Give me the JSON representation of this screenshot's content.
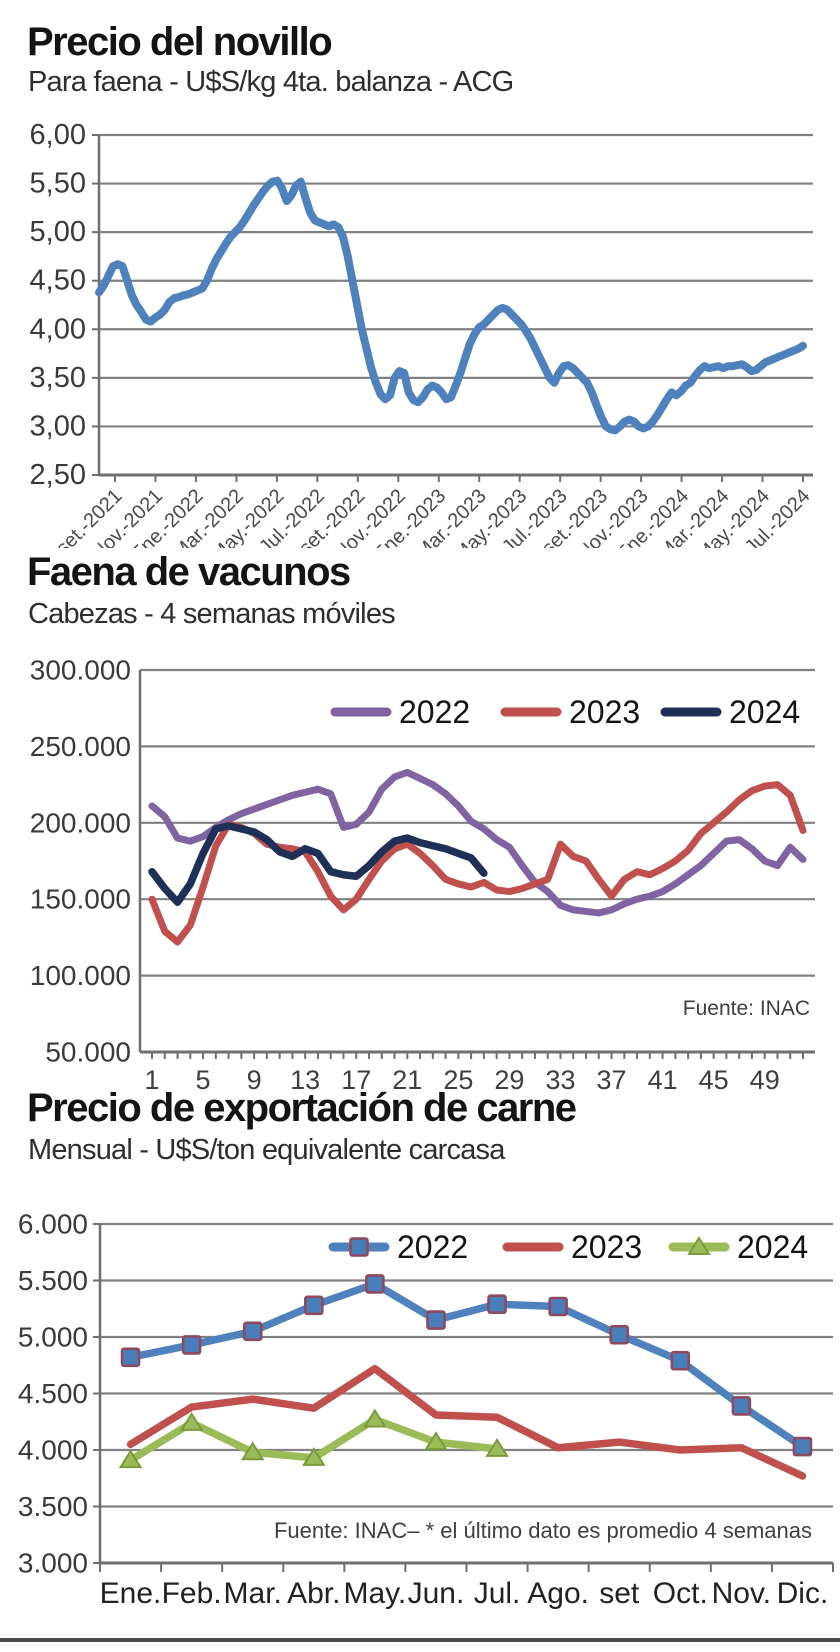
{
  "chart_data": [
    {
      "id": "precio-novillo",
      "type": "line",
      "title": "Precio del novillo",
      "subtitle": "Para faena - U$S/kg 4ta. balanza - ACG",
      "ylim": [
        2.5,
        6.0
      ],
      "yticks": [
        "6,00",
        "5,50",
        "5,00",
        "4,50",
        "4,00",
        "3,50",
        "3,00",
        "2,50"
      ],
      "xticks": [
        "set.-2021",
        "Nov.-2021",
        "Ene.-2022",
        "Mar.-2022",
        "May.-2022",
        "Jul.-2022",
        "set.-2022",
        "Nov.-2022",
        "Ene.-2023",
        "Mar.-2023",
        "May.-2023",
        "Jul.-2023",
        "set.-2023",
        "Nov.-2023",
        "Ene.-2024",
        "Mar.-2024",
        "May.-2024",
        "Jul.-2024"
      ],
      "grid": true,
      "legend_position": "none",
      "series": [
        {
          "name": "Precio del novillo",
          "color": "#4f81bd",
          "values": [
            4.38,
            4.45,
            4.55,
            4.65,
            4.67,
            4.65,
            4.5,
            4.35,
            4.25,
            4.18,
            4.1,
            4.08,
            4.12,
            4.15,
            4.2,
            4.28,
            4.32,
            4.33,
            4.35,
            4.36,
            4.38,
            4.4,
            4.42,
            4.5,
            4.62,
            4.72,
            4.8,
            4.88,
            4.95,
            5.0,
            5.05,
            5.12,
            5.2,
            5.28,
            5.35,
            5.42,
            5.48,
            5.52,
            5.53,
            5.45,
            5.32,
            5.38,
            5.48,
            5.52,
            5.35,
            5.2,
            5.12,
            5.1,
            5.08,
            5.06,
            5.08,
            5.05,
            4.95,
            4.75,
            4.5,
            4.25,
            4.0,
            3.8,
            3.6,
            3.45,
            3.33,
            3.28,
            3.32,
            3.5,
            3.57,
            3.55,
            3.35,
            3.27,
            3.25,
            3.3,
            3.38,
            3.42,
            3.4,
            3.35,
            3.28,
            3.3,
            3.42,
            3.55,
            3.7,
            3.85,
            3.95,
            4.02,
            4.05,
            4.1,
            4.15,
            4.2,
            4.22,
            4.2,
            4.15,
            4.1,
            4.05,
            3.98,
            3.9,
            3.8,
            3.7,
            3.6,
            3.5,
            3.45,
            3.55,
            3.62,
            3.63,
            3.6,
            3.55,
            3.5,
            3.45,
            3.35,
            3.22,
            3.1,
            3.0,
            2.97,
            2.96,
            3.0,
            3.05,
            3.07,
            3.05,
            3.0,
            2.98,
            3.0,
            3.05,
            3.12,
            3.2,
            3.28,
            3.35,
            3.32,
            3.36,
            3.42,
            3.45,
            3.52,
            3.58,
            3.62,
            3.6,
            3.61,
            3.62,
            3.6,
            3.62,
            3.62,
            3.63,
            3.64,
            3.61,
            3.57,
            3.58,
            3.62,
            3.66,
            3.68,
            3.7,
            3.72,
            3.74,
            3.76,
            3.78,
            3.8,
            3.83
          ]
        }
      ]
    },
    {
      "id": "faena-vacunos",
      "type": "line",
      "title": "Faena de vacunos",
      "subtitle": "Cabezas - 4 semanas móviles",
      "ylim": [
        50000,
        300000
      ],
      "yticks": [
        "300.000",
        "250.000",
        "200.000",
        "150.000",
        "100.000",
        "50.000"
      ],
      "xticks": [
        "1",
        "5",
        "9",
        "13",
        "17",
        "21",
        "25",
        "29",
        "33",
        "37",
        "41",
        "45",
        "49"
      ],
      "x_weeks": [
        1,
        52
      ],
      "grid": true,
      "legend_position": "top-center",
      "source": "Fuente: INAC",
      "series": [
        {
          "name": "2022",
          "color": "#8064a2",
          "values": [
            211000,
            204000,
            190000,
            188000,
            191000,
            197000,
            202000,
            206000,
            209000,
            212000,
            215000,
            218000,
            220000,
            222000,
            219000,
            197000,
            199000,
            207000,
            222000,
            230000,
            233000,
            229000,
            225000,
            219000,
            211000,
            201000,
            196000,
            189000,
            184000,
            172000,
            161000,
            155000,
            146000,
            143000,
            142000,
            141000,
            143000,
            147000,
            150000,
            152000,
            155000,
            160000,
            166000,
            172000,
            180000,
            188000,
            189000,
            183000,
            175000,
            172000,
            184000,
            176000
          ]
        },
        {
          "name": "2023",
          "color": "#c0504d",
          "values": [
            150000,
            129000,
            122000,
            133000,
            158000,
            185000,
            199000,
            197000,
            193000,
            186000,
            184000,
            183000,
            181000,
            168000,
            152000,
            143000,
            150000,
            163000,
            175000,
            183000,
            186000,
            180000,
            172000,
            163000,
            160000,
            158000,
            161000,
            156000,
            155000,
            157000,
            160000,
            163000,
            186000,
            178000,
            175000,
            163000,
            152000,
            163000,
            168000,
            166000,
            170000,
            175000,
            182000,
            193000,
            200000,
            207000,
            215000,
            221000,
            224000,
            225000,
            218000,
            195000
          ]
        },
        {
          "name": "2024",
          "color": "#1f3057",
          "values": [
            168000,
            157000,
            148000,
            160000,
            180000,
            196000,
            198000,
            196000,
            194000,
            189000,
            181000,
            178000,
            183000,
            180000,
            168000,
            166000,
            165000,
            172000,
            181000,
            188000,
            190000,
            187000,
            185000,
            183000,
            180000,
            177000,
            167000
          ]
        }
      ]
    },
    {
      "id": "precio-exportacion-carne",
      "type": "line",
      "title": "Precio de exportación de carne",
      "subtitle": "Mensual - U$S/ton equivalente carcasa",
      "ylim": [
        3000,
        6000
      ],
      "yticks": [
        "6.000",
        "5.500",
        "5.000",
        "4.500",
        "4.000",
        "3.500",
        "3.000"
      ],
      "categories": [
        "Ene.",
        "Feb.",
        "Mar.",
        "Abr.",
        "May.",
        "Jun.",
        "Jul.",
        "Ago.",
        "set",
        "Oct.",
        "Nov.",
        "Dic."
      ],
      "grid": true,
      "legend_position": "top-center",
      "source": "Fuente: INAC– * el último dato es promedio 4 semanas",
      "series": [
        {
          "name": "2022",
          "color": "#4f81bd",
          "marker": "square",
          "marker_fill": "#4a7ebb",
          "marker_stroke": "#8e4a5e",
          "values": [
            4820,
            4930,
            5050,
            5280,
            5470,
            5150,
            5290,
            5270,
            5020,
            4790,
            4390,
            4030
          ]
        },
        {
          "name": "2023",
          "color": "#c0504d",
          "marker": "none",
          "values": [
            4050,
            4380,
            4450,
            4370,
            4720,
            4310,
            4290,
            4020,
            4070,
            4000,
            4020,
            3770
          ]
        },
        {
          "name": "2024",
          "color": "#9bbb59",
          "marker": "triangle",
          "marker_fill": "#9bbb59",
          "marker_stroke": "#7a9a3d",
          "values": [
            3910,
            4240,
            3980,
            3930,
            4270,
            4070,
            4010
          ]
        }
      ]
    }
  ]
}
